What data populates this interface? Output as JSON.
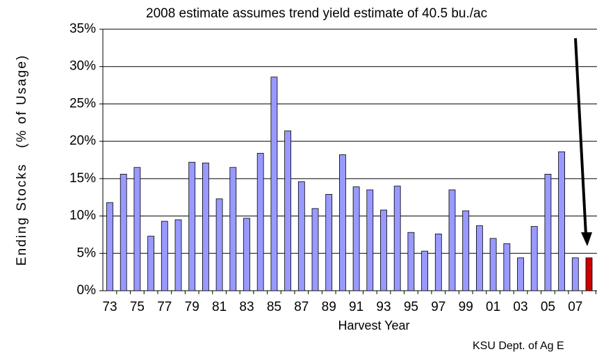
{
  "chart_data": {
    "type": "bar",
    "annotation": "2008 estimate assumes trend yield estimate of 40.5 bu./ac",
    "source": "KSU Dept. of Ag E",
    "x_label": "Harvest Year",
    "y_label": "Ending Stocks   (% of Usage)",
    "categories": [
      "73",
      null,
      "75",
      null,
      "77",
      null,
      "79",
      null,
      "81",
      null,
      "83",
      null,
      "85",
      null,
      "87",
      null,
      "89",
      null,
      "91",
      null,
      "93",
      null,
      "95",
      null,
      "97",
      null,
      "99",
      null,
      "01",
      null,
      "03",
      null,
      "05",
      null,
      "07",
      null
    ],
    "values": [
      11.8,
      15.6,
      16.5,
      7.3,
      9.3,
      9.5,
      17.2,
      17.1,
      12.3,
      16.5,
      9.7,
      18.4,
      28.6,
      21.4,
      14.6,
      11.0,
      12.9,
      18.2,
      13.9,
      13.5,
      10.8,
      14.0,
      7.8,
      5.3,
      7.6,
      13.5,
      10.7,
      8.7,
      7.0,
      6.3,
      4.4,
      8.6,
      15.6,
      18.6,
      4.4,
      4.4
    ],
    "colors": [
      "#9999ff",
      "#9999ff",
      "#9999ff",
      "#9999ff",
      "#9999ff",
      "#9999ff",
      "#9999ff",
      "#9999ff",
      "#9999ff",
      "#9999ff",
      "#9999ff",
      "#9999ff",
      "#9999ff",
      "#9999ff",
      "#9999ff",
      "#9999ff",
      "#9999ff",
      "#9999ff",
      "#9999ff",
      "#9999ff",
      "#9999ff",
      "#9999ff",
      "#9999ff",
      "#9999ff",
      "#9999ff",
      "#9999ff",
      "#9999ff",
      "#9999ff",
      "#9999ff",
      "#9999ff",
      "#9999ff",
      "#9999ff",
      "#9999ff",
      "#9999ff",
      "#9999ff",
      "#cc0000"
    ],
    "ylim": [
      0,
      35
    ],
    "yticks": [
      {
        "value": 0,
        "label": "0%"
      },
      {
        "value": 5,
        "label": "5%"
      },
      {
        "value": 10,
        "label": "10%"
      },
      {
        "value": 15,
        "label": "15%"
      },
      {
        "value": 20,
        "label": "20%"
      },
      {
        "value": 25,
        "label": "25%"
      },
      {
        "value": 30,
        "label": "30%"
      },
      {
        "value": 35,
        "label": "35%"
      }
    ],
    "grid": true
  }
}
